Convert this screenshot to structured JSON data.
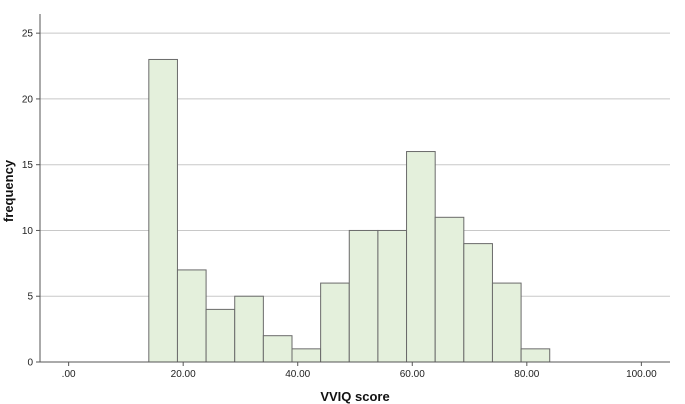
{
  "chart_data": {
    "type": "bar",
    "xlabel": "VVIQ score",
    "ylabel": "frequency",
    "xlim": [
      -5,
      105
    ],
    "ylim": [
      0,
      26
    ],
    "grid": true,
    "x_ticks": [
      {
        "value": 0,
        "label": ".00"
      },
      {
        "value": 20,
        "label": "20.00"
      },
      {
        "value": 40,
        "label": "40.00"
      },
      {
        "value": 60,
        "label": "60.00"
      },
      {
        "value": 80,
        "label": "80.00"
      },
      {
        "value": 100,
        "label": "100.00"
      }
    ],
    "y_ticks": [
      {
        "value": 0,
        "label": "0"
      },
      {
        "value": 5,
        "label": "5"
      },
      {
        "value": 10,
        "label": "10"
      },
      {
        "value": 15,
        "label": "15"
      },
      {
        "value": 20,
        "label": "20"
      },
      {
        "value": 25,
        "label": "25"
      }
    ],
    "bins": [
      {
        "start": 14,
        "end": 19,
        "count": 23
      },
      {
        "start": 19,
        "end": 24,
        "count": 7
      },
      {
        "start": 24,
        "end": 29,
        "count": 4
      },
      {
        "start": 29,
        "end": 34,
        "count": 5
      },
      {
        "start": 34,
        "end": 39,
        "count": 2
      },
      {
        "start": 39,
        "end": 44,
        "count": 1
      },
      {
        "start": 44,
        "end": 49,
        "count": 6
      },
      {
        "start": 49,
        "end": 54,
        "count": 10
      },
      {
        "start": 54,
        "end": 59,
        "count": 10
      },
      {
        "start": 59,
        "end": 64,
        "count": 16
      },
      {
        "start": 64,
        "end": 69,
        "count": 11
      },
      {
        "start": 69,
        "end": 74,
        "count": 9
      },
      {
        "start": 74,
        "end": 79,
        "count": 6
      },
      {
        "start": 79,
        "end": 84,
        "count": 1
      }
    ],
    "colors": {
      "bar_fill": "#e4f0dc",
      "bar_stroke": "#6a6a6a",
      "grid": "#c8c8c8",
      "axis": "#555555"
    }
  }
}
